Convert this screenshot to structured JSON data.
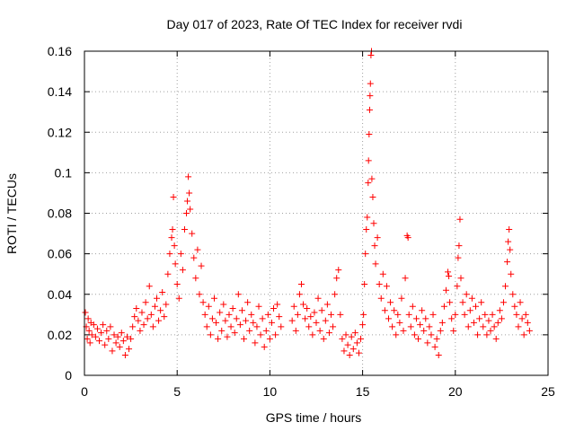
{
  "chart_data": {
    "type": "scatter",
    "title": "Day 017 of 2023, Rate Of TEC Index for receiver rvdi",
    "xlabel": "GPS time / hours",
    "ylabel": "ROTI / TECUs",
    "xlim": [
      0,
      25
    ],
    "ylim": [
      0,
      0.16
    ],
    "xticks": [
      0,
      5,
      10,
      15,
      20,
      25
    ],
    "xtick_labels": [
      "0",
      "5",
      "10",
      "15",
      "20",
      "25"
    ],
    "yticks": [
      0,
      0.02,
      0.04,
      0.06,
      0.08,
      0.1,
      0.12,
      0.14,
      0.16
    ],
    "ytick_labels": [
      "0",
      "0.02",
      "0.04",
      "0.06",
      "0.08",
      "0.1",
      "0.12",
      "0.14",
      "0.16"
    ],
    "grid": true,
    "marker": "+",
    "color": "#ff0000",
    "series": [
      {
        "name": "ROTI",
        "points": [
          [
            0.05,
            0.031
          ],
          [
            0.1,
            0.024
          ],
          [
            0.15,
            0.018
          ],
          [
            0.2,
            0.028
          ],
          [
            0.25,
            0.022
          ],
          [
            0.3,
            0.016
          ],
          [
            0.35,
            0.026
          ],
          [
            0.4,
            0.02
          ],
          [
            0.5,
            0.025
          ],
          [
            0.6,
            0.019
          ],
          [
            0.7,
            0.023
          ],
          [
            0.8,
            0.017
          ],
          [
            0.9,
            0.021
          ],
          [
            1.0,
            0.025
          ],
          [
            1.1,
            0.015
          ],
          [
            1.2,
            0.022
          ],
          [
            1.3,
            0.018
          ],
          [
            1.4,
            0.024
          ],
          [
            1.5,
            0.012
          ],
          [
            1.6,
            0.02
          ],
          [
            1.7,
            0.016
          ],
          [
            1.8,
            0.019
          ],
          [
            1.9,
            0.014
          ],
          [
            2.0,
            0.021
          ],
          [
            2.1,
            0.017
          ],
          [
            2.2,
            0.01
          ],
          [
            2.3,
            0.019
          ],
          [
            2.4,
            0.013
          ],
          [
            2.5,
            0.018
          ],
          [
            2.6,
            0.024
          ],
          [
            2.7,
            0.029
          ],
          [
            2.8,
            0.033
          ],
          [
            2.9,
            0.027
          ],
          [
            3.0,
            0.022
          ],
          [
            3.1,
            0.031
          ],
          [
            3.2,
            0.025
          ],
          [
            3.3,
            0.036
          ],
          [
            3.4,
            0.028
          ],
          [
            3.5,
            0.044
          ],
          [
            3.6,
            0.03
          ],
          [
            3.7,
            0.024
          ],
          [
            3.8,
            0.034
          ],
          [
            3.9,
            0.038
          ],
          [
            4.0,
            0.027
          ],
          [
            4.1,
            0.032
          ],
          [
            4.2,
            0.041
          ],
          [
            4.3,
            0.029
          ],
          [
            4.4,
            0.035
          ],
          [
            4.5,
            0.05
          ],
          [
            4.6,
            0.06
          ],
          [
            4.7,
            0.068
          ],
          [
            4.75,
            0.072
          ],
          [
            4.8,
            0.088
          ],
          [
            4.85,
            0.064
          ],
          [
            4.9,
            0.055
          ],
          [
            5.0,
            0.045
          ],
          [
            5.1,
            0.038
          ],
          [
            5.2,
            0.06
          ],
          [
            5.3,
            0.052
          ],
          [
            5.4,
            0.072
          ],
          [
            5.5,
            0.08
          ],
          [
            5.55,
            0.086
          ],
          [
            5.6,
            0.098
          ],
          [
            5.65,
            0.09
          ],
          [
            5.7,
            0.082
          ],
          [
            5.8,
            0.07
          ],
          [
            5.9,
            0.058
          ],
          [
            6.0,
            0.048
          ],
          [
            6.1,
            0.062
          ],
          [
            6.2,
            0.04
          ],
          [
            6.3,
            0.054
          ],
          [
            6.4,
            0.036
          ],
          [
            6.5,
            0.03
          ],
          [
            6.6,
            0.024
          ],
          [
            6.7,
            0.034
          ],
          [
            6.8,
            0.02
          ],
          [
            6.9,
            0.028
          ],
          [
            7.0,
            0.038
          ],
          [
            7.1,
            0.026
          ],
          [
            7.2,
            0.018
          ],
          [
            7.3,
            0.031
          ],
          [
            7.4,
            0.022
          ],
          [
            7.5,
            0.035
          ],
          [
            7.6,
            0.027
          ],
          [
            7.7,
            0.019
          ],
          [
            7.8,
            0.03
          ],
          [
            7.9,
            0.024
          ],
          [
            8.0,
            0.033
          ],
          [
            8.1,
            0.021
          ],
          [
            8.2,
            0.028
          ],
          [
            8.3,
            0.04
          ],
          [
            8.4,
            0.025
          ],
          [
            8.5,
            0.032
          ],
          [
            8.6,
            0.018
          ],
          [
            8.7,
            0.027
          ],
          [
            8.8,
            0.036
          ],
          [
            8.9,
            0.022
          ],
          [
            9.0,
            0.03
          ],
          [
            9.1,
            0.026
          ],
          [
            9.2,
            0.016
          ],
          [
            9.3,
            0.024
          ],
          [
            9.4,
            0.034
          ],
          [
            9.5,
            0.02
          ],
          [
            9.6,
            0.028
          ],
          [
            9.7,
            0.014
          ],
          [
            9.8,
            0.022
          ],
          [
            9.9,
            0.03
          ],
          [
            10.0,
            0.018
          ],
          [
            10.1,
            0.026
          ],
          [
            10.2,
            0.033
          ],
          [
            10.3,
            0.02
          ],
          [
            10.4,
            0.035
          ],
          [
            10.5,
            0.029
          ],
          [
            10.6,
            0.024
          ],
          [
            11.2,
            0.027
          ],
          [
            11.3,
            0.034
          ],
          [
            11.4,
            0.022
          ],
          [
            11.5,
            0.03
          ],
          [
            11.6,
            0.04
          ],
          [
            11.7,
            0.045
          ],
          [
            11.8,
            0.035
          ],
          [
            11.9,
            0.028
          ],
          [
            12.0,
            0.033
          ],
          [
            12.1,
            0.024
          ],
          [
            12.2,
            0.029
          ],
          [
            12.3,
            0.02
          ],
          [
            12.4,
            0.031
          ],
          [
            12.5,
            0.026
          ],
          [
            12.6,
            0.038
          ],
          [
            12.7,
            0.022
          ],
          [
            12.8,
            0.032
          ],
          [
            12.9,
            0.018
          ],
          [
            13.0,
            0.027
          ],
          [
            13.1,
            0.035
          ],
          [
            13.2,
            0.021
          ],
          [
            13.3,
            0.03
          ],
          [
            13.4,
            0.024
          ],
          [
            13.5,
            0.04
          ],
          [
            13.6,
            0.048
          ],
          [
            13.7,
            0.052
          ],
          [
            13.8,
            0.03
          ],
          [
            13.9,
            0.018
          ],
          [
            14.0,
            0.012
          ],
          [
            14.1,
            0.02
          ],
          [
            14.2,
            0.015
          ],
          [
            14.3,
            0.01
          ],
          [
            14.4,
            0.019
          ],
          [
            14.5,
            0.013
          ],
          [
            14.6,
            0.021
          ],
          [
            14.7,
            0.016
          ],
          [
            14.8,
            0.011
          ],
          [
            14.9,
            0.018
          ],
          [
            15.0,
            0.025
          ],
          [
            15.05,
            0.03
          ],
          [
            15.1,
            0.045
          ],
          [
            15.15,
            0.06
          ],
          [
            15.2,
            0.072
          ],
          [
            15.25,
            0.078
          ],
          [
            15.3,
            0.095
          ],
          [
            15.32,
            0.106
          ],
          [
            15.35,
            0.119
          ],
          [
            15.38,
            0.131
          ],
          [
            15.4,
            0.138
          ],
          [
            15.42,
            0.144
          ],
          [
            15.45,
            0.158
          ],
          [
            15.48,
            0.16
          ],
          [
            15.5,
            0.097
          ],
          [
            15.55,
            0.088
          ],
          [
            15.6,
            0.075
          ],
          [
            15.65,
            0.064
          ],
          [
            15.7,
            0.055
          ],
          [
            15.8,
            0.068
          ],
          [
            15.9,
            0.045
          ],
          [
            16.0,
            0.038
          ],
          [
            16.1,
            0.05
          ],
          [
            16.2,
            0.032
          ],
          [
            16.3,
            0.044
          ],
          [
            16.4,
            0.028
          ],
          [
            16.5,
            0.036
          ],
          [
            16.6,
            0.024
          ],
          [
            16.7,
            0.032
          ],
          [
            16.8,
            0.02
          ],
          [
            16.9,
            0.03
          ],
          [
            17.0,
            0.026
          ],
          [
            17.1,
            0.038
          ],
          [
            17.2,
            0.022
          ],
          [
            17.3,
            0.048
          ],
          [
            17.4,
            0.069
          ],
          [
            17.45,
            0.068
          ],
          [
            17.5,
            0.03
          ],
          [
            17.6,
            0.024
          ],
          [
            17.7,
            0.034
          ],
          [
            17.8,
            0.02
          ],
          [
            17.9,
            0.028
          ],
          [
            18.0,
            0.018
          ],
          [
            18.1,
            0.025
          ],
          [
            18.2,
            0.032
          ],
          [
            18.3,
            0.022
          ],
          [
            18.4,
            0.028
          ],
          [
            18.5,
            0.016
          ],
          [
            18.6,
            0.024
          ],
          [
            18.7,
            0.02
          ],
          [
            18.8,
            0.03
          ],
          [
            18.9,
            0.014
          ],
          [
            19.0,
            0.018
          ],
          [
            19.1,
            0.01
          ],
          [
            19.2,
            0.022
          ],
          [
            19.3,
            0.026
          ],
          [
            19.4,
            0.034
          ],
          [
            19.5,
            0.042
          ],
          [
            19.6,
            0.051
          ],
          [
            19.65,
            0.049
          ],
          [
            19.7,
            0.036
          ],
          [
            19.8,
            0.028
          ],
          [
            19.9,
            0.022
          ],
          [
            20.0,
            0.03
          ],
          [
            20.1,
            0.044
          ],
          [
            20.15,
            0.058
          ],
          [
            20.2,
            0.064
          ],
          [
            20.25,
            0.077
          ],
          [
            20.3,
            0.048
          ],
          [
            20.4,
            0.036
          ],
          [
            20.5,
            0.03
          ],
          [
            20.6,
            0.04
          ],
          [
            20.7,
            0.024
          ],
          [
            20.8,
            0.032
          ],
          [
            20.9,
            0.038
          ],
          [
            21.0,
            0.026
          ],
          [
            21.1,
            0.034
          ],
          [
            21.2,
            0.02
          ],
          [
            21.3,
            0.028
          ],
          [
            21.4,
            0.036
          ],
          [
            21.5,
            0.024
          ],
          [
            21.6,
            0.03
          ],
          [
            21.7,
            0.02
          ],
          [
            21.8,
            0.027
          ],
          [
            21.9,
            0.022
          ],
          [
            22.0,
            0.03
          ],
          [
            22.1,
            0.024
          ],
          [
            22.2,
            0.018
          ],
          [
            22.3,
            0.026
          ],
          [
            22.4,
            0.032
          ],
          [
            22.5,
            0.028
          ],
          [
            22.6,
            0.036
          ],
          [
            22.7,
            0.044
          ],
          [
            22.8,
            0.056
          ],
          [
            22.85,
            0.066
          ],
          [
            22.9,
            0.072
          ],
          [
            22.95,
            0.062
          ],
          [
            23.0,
            0.05
          ],
          [
            23.1,
            0.04
          ],
          [
            23.2,
            0.034
          ],
          [
            23.3,
            0.03
          ],
          [
            23.4,
            0.024
          ],
          [
            23.5,
            0.036
          ],
          [
            23.6,
            0.028
          ],
          [
            23.7,
            0.02
          ],
          [
            23.8,
            0.03
          ],
          [
            23.9,
            0.026
          ],
          [
            24.0,
            0.022
          ]
        ]
      }
    ]
  }
}
